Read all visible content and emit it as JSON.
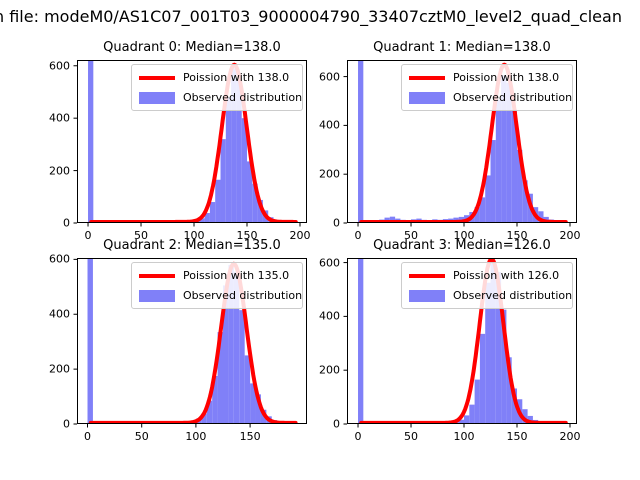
{
  "figure": {
    "title": "n file: modeM0/AS1C07_001T03_9000004790_33407cztM0_level2_quad_clean",
    "background": "#ffffff"
  },
  "colors": {
    "poisson_line": "#ff0000",
    "histogram_fill": "#8080f8",
    "legend_border": "#cccccc",
    "axis": "#000000",
    "text": "#000000"
  },
  "chart_data": [
    {
      "type": "bar",
      "quadrant": 0,
      "title": "Quadrant 0: Median=138.0",
      "median": 138.0,
      "legend": {
        "line_label": "Poission with 138.0",
        "patch_label": "Observed distribution",
        "position": "upper right"
      },
      "xlabel": "",
      "ylabel": "",
      "grid": false,
      "xticks": [
        0,
        50,
        100,
        150,
        200
      ],
      "yticks": [
        0,
        200,
        400,
        600
      ],
      "xlim": [
        -10.4,
        206.6
      ],
      "ylim": [
        0,
        622
      ],
      "binwidth": 5,
      "poisson": {
        "mu": 138.0,
        "sigma": 11.7,
        "peak": 600,
        "baseline": 4,
        "x_start": 3,
        "x_end": 196
      },
      "bars": [
        [
          0,
          650
        ],
        [
          75,
          4
        ],
        [
          80,
          7
        ],
        [
          85,
          5
        ],
        [
          90,
          4
        ],
        [
          95,
          6
        ],
        [
          100,
          10
        ],
        [
          105,
          18
        ],
        [
          110,
          38
        ],
        [
          115,
          80
        ],
        [
          120,
          165
        ],
        [
          125,
          320
        ],
        [
          130,
          480
        ],
        [
          135,
          590
        ],
        [
          140,
          550
        ],
        [
          145,
          400
        ],
        [
          150,
          235
        ],
        [
          155,
          150
        ],
        [
          160,
          88
        ],
        [
          165,
          48
        ],
        [
          170,
          22
        ],
        [
          175,
          11
        ],
        [
          180,
          6
        ],
        [
          185,
          4
        ],
        [
          190,
          7
        ]
      ]
    },
    {
      "type": "bar",
      "quadrant": 1,
      "title": "Quadrant 1: Median=138.0",
      "median": 138.0,
      "legend": {
        "line_label": "Poission with 138.0",
        "patch_label": "Observed distribution",
        "position": "upper right"
      },
      "xlabel": "",
      "ylabel": "",
      "grid": false,
      "xticks": [
        0,
        50,
        100,
        150,
        200
      ],
      "yticks": [
        0,
        200,
        400,
        600
      ],
      "xlim": [
        -10.4,
        206.6
      ],
      "ylim": [
        0,
        668
      ],
      "binwidth": 5,
      "poisson": {
        "mu": 138.0,
        "sigma": 11.7,
        "peak": 645,
        "baseline": 4,
        "x_start": 3,
        "x_end": 196
      },
      "bars": [
        [
          0,
          700
        ],
        [
          10,
          6
        ],
        [
          15,
          10
        ],
        [
          20,
          14
        ],
        [
          25,
          22
        ],
        [
          30,
          26
        ],
        [
          35,
          18
        ],
        [
          40,
          13
        ],
        [
          45,
          12
        ],
        [
          50,
          15
        ],
        [
          55,
          18
        ],
        [
          60,
          13
        ],
        [
          65,
          12
        ],
        [
          70,
          15
        ],
        [
          75,
          13
        ],
        [
          80,
          16
        ],
        [
          85,
          18
        ],
        [
          90,
          22
        ],
        [
          95,
          25
        ],
        [
          100,
          32
        ],
        [
          105,
          45
        ],
        [
          110,
          65
        ],
        [
          115,
          105
        ],
        [
          120,
          195
        ],
        [
          125,
          340
        ],
        [
          130,
          505
        ],
        [
          135,
          605
        ],
        [
          140,
          575
        ],
        [
          145,
          465
        ],
        [
          150,
          300
        ],
        [
          155,
          175
        ],
        [
          160,
          120
        ],
        [
          165,
          65
        ],
        [
          170,
          48
        ],
        [
          175,
          25
        ],
        [
          180,
          14
        ],
        [
          185,
          8
        ],
        [
          190,
          5
        ]
      ]
    },
    {
      "type": "bar",
      "quadrant": 2,
      "title": "Quadrant 2: Median=135.0",
      "median": 135.0,
      "legend": {
        "line_label": "Poission with 135.0",
        "patch_label": "Observed distribution",
        "position": "upper right"
      },
      "xlabel": "",
      "ylabel": "",
      "grid": false,
      "xticks": [
        0,
        50,
        100,
        150
      ],
      "yticks": [
        0,
        200,
        400,
        600
      ],
      "xlim": [
        -9.7,
        202.5
      ],
      "ylim": [
        0,
        605
      ],
      "binwidth": 5,
      "poisson": {
        "mu": 135.0,
        "sigma": 11.6,
        "peak": 580,
        "baseline": 4,
        "x_start": 3,
        "x_end": 192
      },
      "bars": [
        [
          0,
          640
        ],
        [
          70,
          4
        ],
        [
          75,
          6
        ],
        [
          80,
          8
        ],
        [
          85,
          5
        ],
        [
          90,
          8
        ],
        [
          95,
          12
        ],
        [
          100,
          20
        ],
        [
          105,
          38
        ],
        [
          110,
          85
        ],
        [
          115,
          175
        ],
        [
          120,
          335
        ],
        [
          125,
          505
        ],
        [
          130,
          580
        ],
        [
          135,
          555
        ],
        [
          140,
          415
        ],
        [
          145,
          250
        ],
        [
          150,
          148
        ],
        [
          155,
          108
        ],
        [
          160,
          52
        ],
        [
          165,
          28
        ],
        [
          170,
          14
        ],
        [
          175,
          8
        ],
        [
          180,
          5
        ],
        [
          185,
          4
        ]
      ]
    },
    {
      "type": "bar",
      "quadrant": 3,
      "title": "Quadrant 3: Median=126.0",
      "median": 126.0,
      "legend": {
        "line_label": "Poission with 126.0",
        "patch_label": "Observed distribution",
        "position": "upper right"
      },
      "xlabel": "",
      "ylabel": "",
      "grid": false,
      "xticks": [
        0,
        50,
        100,
        150,
        200
      ],
      "yticks": [
        0,
        200,
        400,
        600
      ],
      "xlim": [
        -10.4,
        206.6
      ],
      "ylim": [
        0,
        617
      ],
      "binwidth": 5,
      "poisson": {
        "mu": 126.0,
        "sigma": 11.2,
        "peak": 610,
        "baseline": 4,
        "x_start": 3,
        "x_end": 196
      },
      "bars": [
        [
          0,
          640
        ],
        [
          70,
          9
        ],
        [
          75,
          4
        ],
        [
          80,
          5
        ],
        [
          85,
          7
        ],
        [
          90,
          11
        ],
        [
          95,
          16
        ],
        [
          100,
          32
        ],
        [
          105,
          72
        ],
        [
          110,
          165
        ],
        [
          115,
          335
        ],
        [
          120,
          525
        ],
        [
          125,
          600
        ],
        [
          130,
          565
        ],
        [
          135,
          425
        ],
        [
          140,
          248
        ],
        [
          145,
          132
        ],
        [
          150,
          92
        ],
        [
          155,
          55
        ],
        [
          160,
          30
        ],
        [
          165,
          15
        ],
        [
          170,
          8
        ]
      ]
    }
  ]
}
